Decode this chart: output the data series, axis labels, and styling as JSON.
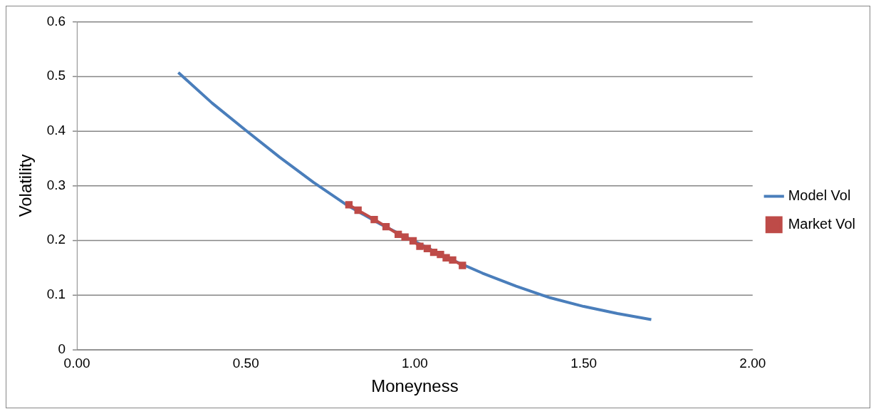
{
  "chart_data": {
    "type": "line",
    "xlabel": "Moneyness",
    "ylabel": "Volatility",
    "xlim": [
      0,
      2
    ],
    "xticks": [
      {
        "value": 0,
        "label": "0.00"
      },
      {
        "value": 0.5,
        "label": "0.50"
      },
      {
        "value": 1,
        "label": "1.00"
      },
      {
        "value": 1.5,
        "label": "1.50"
      },
      {
        "value": 2,
        "label": "2.00"
      }
    ],
    "ylim": [
      0,
      0.6
    ],
    "yticks": [
      0,
      0.1,
      0.2,
      0.3,
      0.4,
      0.5,
      0.6
    ],
    "grid": "y",
    "legend": "right",
    "series": [
      {
        "name": "Model Vol",
        "color": "#4a7ebb",
        "marker": "none",
        "x": [
          0.3,
          0.4,
          0.5,
          0.6,
          0.7,
          0.8,
          0.9,
          1.0,
          1.1,
          1.2,
          1.3,
          1.4,
          1.5,
          1.6,
          1.7
        ],
        "values": [
          0.507,
          0.451,
          0.401,
          0.352,
          0.306,
          0.264,
          0.229,
          0.198,
          0.167,
          0.14,
          0.116,
          0.095,
          0.079,
          0.066,
          0.055
        ]
      },
      {
        "name": "Market Vol",
        "color": "#be4b48",
        "marker": "square",
        "x": [
          0.805,
          0.832,
          0.88,
          0.915,
          0.951,
          0.971,
          0.995,
          1.015,
          1.037,
          1.056,
          1.076,
          1.093,
          1.112,
          1.141
        ],
        "values": [
          0.265,
          0.255,
          0.238,
          0.225,
          0.211,
          0.206,
          0.199,
          0.189,
          0.185,
          0.178,
          0.174,
          0.168,
          0.164,
          0.154
        ]
      }
    ]
  }
}
